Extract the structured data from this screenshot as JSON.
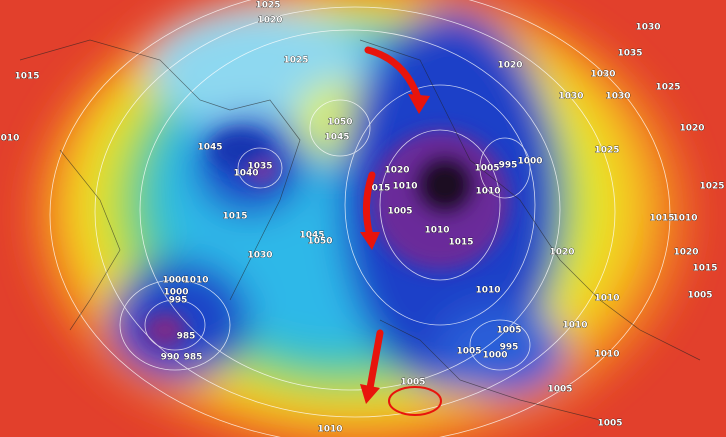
{
  "isobar_labels": [
    "1025",
    "1020",
    "1025",
    "1015",
    "010",
    "1045",
    "1035",
    "1040",
    "1050",
    "1045",
    "1020",
    "015",
    "1010",
    "1005",
    "1005",
    "995",
    "1000",
    "1010",
    "1015",
    "1045",
    "1050",
    "1030",
    "1010",
    "1015",
    "1020",
    "1000",
    "1010",
    "1000",
    "995",
    "985",
    "990",
    "985",
    "1010",
    "1005",
    "995",
    "1005",
    "1000",
    "1005",
    "1010",
    "1010",
    "1005",
    "1005",
    "1010",
    "1020",
    "1030",
    "1035",
    "1030",
    "1030",
    "1030",
    "1025",
    "1020",
    "1025",
    "1015",
    "1010",
    "1025",
    "1020",
    "1015",
    "1005",
    "1010"
  ]
}
